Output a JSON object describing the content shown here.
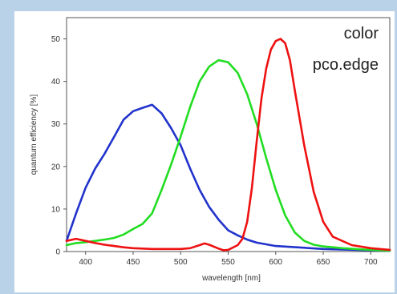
{
  "chart_data": {
    "type": "line",
    "annotations": [
      "color",
      "pco.edge"
    ],
    "xlabel": "wavelength [nm]",
    "ylabel": "quantum efficiency [%]",
    "xlim": [
      380,
      720
    ],
    "ylim": [
      0,
      55
    ],
    "xticks": [
      400,
      450,
      500,
      550,
      600,
      650,
      700
    ],
    "yticks": [
      0,
      10,
      20,
      30,
      40,
      50
    ],
    "grid": false,
    "series": [
      {
        "color": "#2233cc",
        "x": [
          380,
          390,
          400,
          410,
          420,
          430,
          440,
          450,
          460,
          470,
          480,
          490,
          500,
          510,
          520,
          530,
          540,
          550,
          560,
          570,
          580,
          600,
          650,
          700,
          720
        ],
        "y": [
          2.5,
          9,
          15,
          19.5,
          23,
          27,
          31,
          33,
          33.8,
          34.5,
          32.5,
          29,
          25,
          19.5,
          14.5,
          10.5,
          7.5,
          5,
          3.8,
          2.8,
          2.1,
          1.3,
          0.6,
          0.3,
          0.2
        ]
      },
      {
        "color": "#22dd22",
        "x": [
          380,
          390,
          400,
          410,
          420,
          430,
          440,
          450,
          460,
          470,
          480,
          490,
          500,
          510,
          520,
          530,
          540,
          550,
          560,
          570,
          580,
          590,
          600,
          610,
          620,
          630,
          640,
          650,
          670,
          690,
          710,
          720
        ],
        "y": [
          1.5,
          2,
          2.2,
          2.5,
          2.8,
          3.2,
          4,
          5.3,
          6.5,
          9,
          14.5,
          20.5,
          27,
          34,
          40,
          43.5,
          45,
          44.5,
          42,
          37,
          30,
          22,
          14.5,
          8.5,
          4.5,
          2.5,
          1.6,
          1.2,
          0.8,
          0.5,
          0.3,
          0.2
        ]
      },
      {
        "color": "#ee1111",
        "x": [
          380,
          390,
          400,
          410,
          420,
          430,
          440,
          450,
          460,
          470,
          480,
          490,
          500,
          510,
          520,
          525,
          530,
          540,
          545,
          550,
          560,
          565,
          570,
          575,
          580,
          585,
          590,
          595,
          600,
          605,
          610,
          615,
          620,
          630,
          640,
          650,
          660,
          680,
          700,
          720
        ],
        "y": [
          2.5,
          3,
          2.5,
          2,
          1.6,
          1.3,
          1,
          0.8,
          0.7,
          0.6,
          0.6,
          0.6,
          0.6,
          0.8,
          1.5,
          1.9,
          1.6,
          0.7,
          0.3,
          0.4,
          1.5,
          3,
          7,
          15,
          26,
          36,
          43,
          47.5,
          49.5,
          50,
          49,
          45,
          38,
          25,
          14,
          7,
          3.5,
          1.5,
          0.8,
          0.4
        ]
      }
    ]
  }
}
